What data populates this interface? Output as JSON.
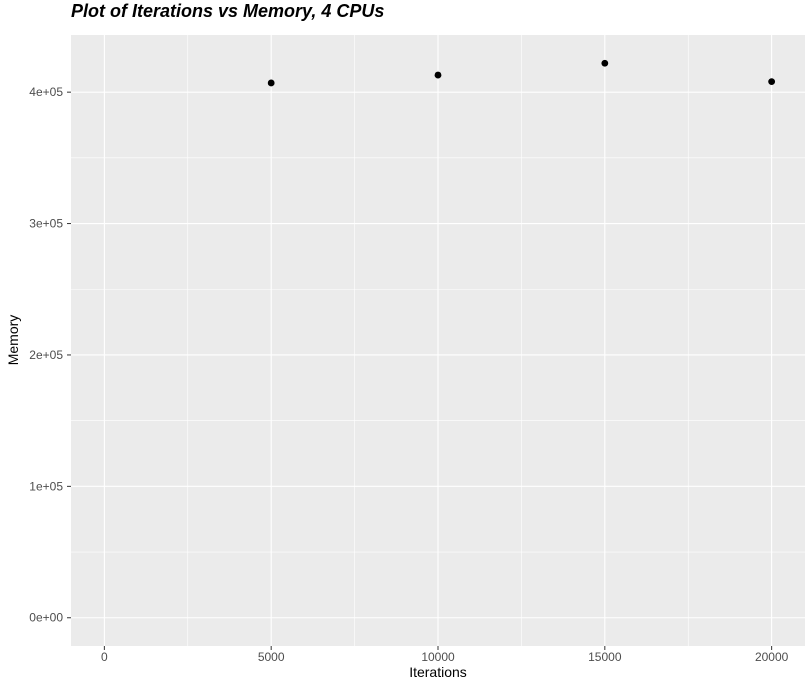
{
  "title": "Plot of Iterations vs Memory, 4 CPUs",
  "chart_data": {
    "type": "scatter",
    "title": "Plot of Iterations vs Memory, 4 CPUs",
    "xlabel": "Iterations",
    "ylabel": "Memory",
    "points": [
      {
        "x": 5000,
        "y": 407000
      },
      {
        "x": 10000,
        "y": 413000
      },
      {
        "x": 15000,
        "y": 422000
      },
      {
        "x": 20000,
        "y": 408000
      }
    ],
    "x_ticks": [
      0,
      5000,
      10000,
      15000,
      20000
    ],
    "x_tick_labels": [
      "0",
      "5000",
      "10000",
      "15000",
      "20000"
    ],
    "x_minor_ticks": [
      2500,
      7500,
      12500,
      17500
    ],
    "y_ticks": [
      0,
      100000,
      200000,
      300000,
      400000
    ],
    "y_tick_labels": [
      "0e+00",
      "1e+05",
      "2e+05",
      "3e+05",
      "4e+05"
    ],
    "y_minor_ticks": [
      50000,
      150000,
      250000,
      350000
    ],
    "xlim": [
      -1000,
      21000
    ],
    "ylim": [
      -21500,
      443500
    ],
    "grid": "major and minor gridlines on",
    "legend": "none",
    "colors": {
      "plot_background": "#FFFFFF",
      "panel_background": "#EBEBEB",
      "grid_major": "#FFFFFF",
      "grid_minor": "#FFFFFF",
      "point": "#000000",
      "tick_mark": "#333333",
      "tick_label": "#4D4D4D",
      "axis_title": "#000000",
      "title": "#000000"
    }
  }
}
